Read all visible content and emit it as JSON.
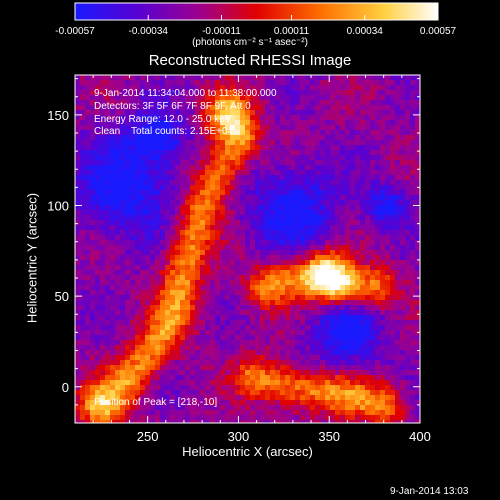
{
  "chart_data": {
    "type": "heatmap",
    "title": "Reconstructed RHESSI Image",
    "xlabel": "Heliocentric X (arcsec)",
    "ylabel": "Heliocentric Y (arcsec)",
    "xlim": [
      210,
      400
    ],
    "ylim": [
      -20,
      172
    ],
    "xticks": [
      250,
      300,
      350,
      400
    ],
    "yticks": [
      0,
      50,
      100,
      150
    ],
    "colorbar": {
      "range": [
        -0.00057,
        0.00057
      ],
      "tick_values": [
        -0.00057,
        -0.00034,
        -0.00011,
        0.00011,
        0.00034,
        0.00057
      ],
      "tick_labels": [
        "-0.00057",
        "-0.00034",
        "-0.00011",
        "0.00011",
        "0.00034",
        "0.00057"
      ],
      "unit_label": "(photons cm⁻² s⁻¹ asec⁻²)",
      "colors": [
        "#1a1aff",
        "#6a00c8",
        "#b00080",
        "#e00000",
        "#ff8000",
        "#ffff60",
        "#ffffff"
      ]
    },
    "annotations": {
      "time_range": "9-Jan-2014 11:34:04.000 to 11:38:00.000",
      "detectors": "Detectors: 3F 5F 6F 7F 8F 9F, Att 0",
      "energy": "Energy Range: 12.0 - 25.0 keV",
      "method_counts": "Clean    Total counts: 2.15E+04",
      "peak": "Position of Peak = [218,-10]"
    },
    "peak_position": [
      218,
      -10
    ],
    "features": [
      {
        "label": "emission arc",
        "points": [
          [
            300,
            135
          ],
          [
            290,
            120
          ],
          [
            278,
            95
          ],
          [
            270,
            65
          ],
          [
            265,
            40
          ],
          [
            252,
            20
          ],
          [
            240,
            5
          ]
        ]
      },
      {
        "label": "loop top band",
        "points": [
          [
            315,
            55
          ],
          [
            330,
            60
          ],
          [
            345,
            62
          ],
          [
            355,
            58
          ],
          [
            365,
            55
          ],
          [
            375,
            55
          ]
        ]
      },
      {
        "label": "lower rim",
        "points": [
          [
            310,
            5
          ],
          [
            330,
            0
          ],
          [
            360,
            -5
          ],
          [
            380,
            -10
          ]
        ]
      },
      {
        "label": "bright spot",
        "points": [
          [
            350,
            60
          ]
        ]
      },
      {
        "label": "bright spot",
        "points": [
          [
            295,
            150
          ]
        ]
      },
      {
        "label": "bright spot",
        "points": [
          [
            225,
            -10
          ]
        ]
      }
    ],
    "cold_regions": [
      {
        "center": [
          238,
          110
        ],
        "r": 20
      },
      {
        "center": [
          255,
          138
        ],
        "r": 10
      },
      {
        "center": [
          330,
          98
        ],
        "r": 17
      },
      {
        "center": [
          360,
          30
        ],
        "r": 14
      },
      {
        "center": [
          382,
          100
        ],
        "r": 8
      }
    ]
  },
  "footer": {
    "date": "9-Jan-2014 13:03"
  }
}
